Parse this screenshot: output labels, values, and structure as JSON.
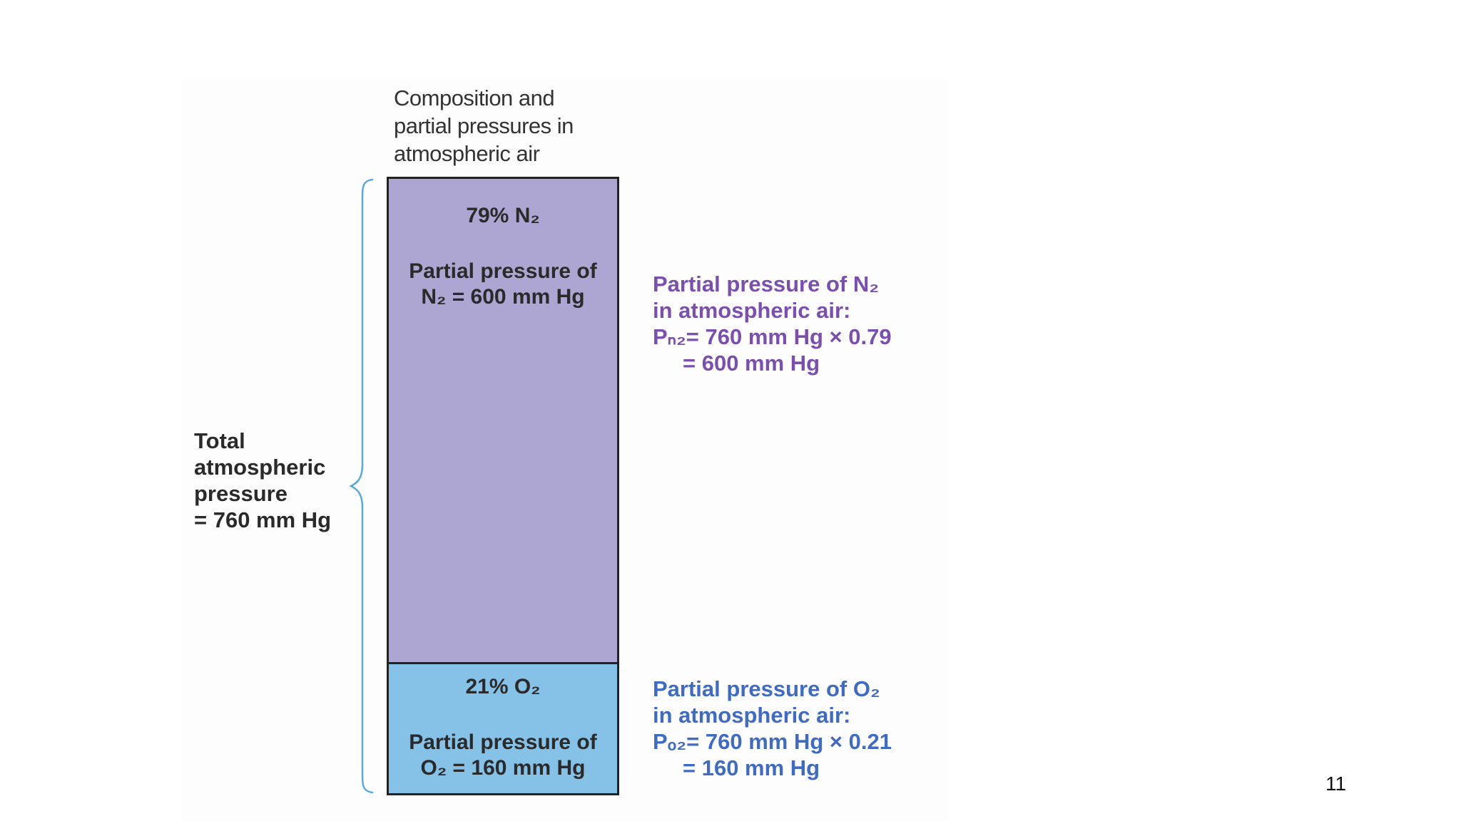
{
  "caption": [
    "Composition and",
    "partial pressures in",
    "atmospheric air"
  ],
  "total_label": [
    "Total",
    "atmospheric",
    "pressure",
    "= 760 mm Hg"
  ],
  "segments": {
    "n2": {
      "percent": "79% N₂",
      "pressure": [
        "Partial pressure of",
        "N₂ = 600 mm Hg"
      ],
      "fraction": 0.79,
      "color": "#ada6d2"
    },
    "o2": {
      "percent": "21% O₂",
      "pressure": [
        "Partial pressure of",
        "O₂ = 160 mm Hg"
      ],
      "fraction": 0.21,
      "color": "#86c1e8"
    }
  },
  "annotations": {
    "n2": [
      "Partial pressure of N₂",
      "in atmospheric air:",
      "Pₙ₂= 760 mm Hg × 0.79",
      "= 600 mm Hg"
    ],
    "o2": [
      "Partial pressure of O₂",
      "in atmospheric air:",
      "Pₒ₂= 760 mm Hg × 0.21",
      "= 160 mm Hg"
    ]
  },
  "colors": {
    "n2_text": "#7a4fb0",
    "o2_text": "#3f6bc3",
    "brace": "#5aa9dc"
  },
  "page_number": "11"
}
